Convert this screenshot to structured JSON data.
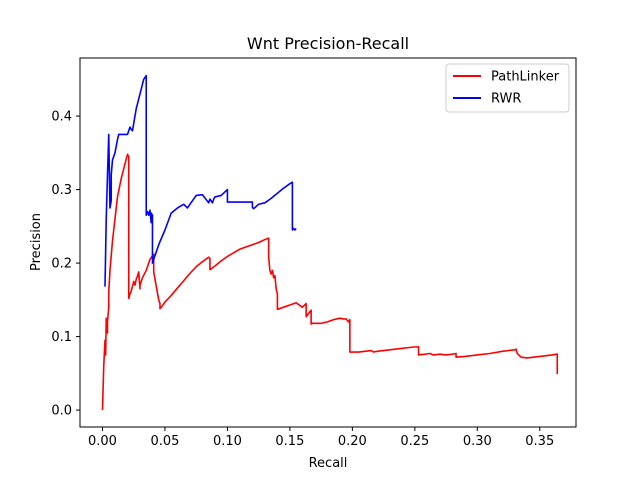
{
  "chart_data": {
    "type": "line",
    "title": "Wnt Precision-Recall",
    "xlabel": "Recall",
    "ylabel": "Precision",
    "xlim": [
      -0.018,
      0.379
    ],
    "ylim": [
      -0.023,
      0.479
    ],
    "xticks": [
      0.0,
      0.05,
      0.1,
      0.15,
      0.2,
      0.25,
      0.3,
      0.35
    ],
    "xtick_labels": [
      "0.00",
      "0.05",
      "0.10",
      "0.15",
      "0.20",
      "0.25",
      "0.30",
      "0.35"
    ],
    "yticks": [
      0.0,
      0.1,
      0.2,
      0.3,
      0.4
    ],
    "ytick_labels": [
      "0.0",
      "0.1",
      "0.2",
      "0.3",
      "0.4"
    ],
    "grid": false,
    "legend_position": "top-right",
    "series": [
      {
        "name": "PathLinker",
        "color": "#ff0000",
        "x": [
          0.0,
          0.001,
          0.002,
          0.0025,
          0.003,
          0.004,
          0.004,
          0.005,
          0.005,
          0.006,
          0.008,
          0.01,
          0.012,
          0.015,
          0.018,
          0.02,
          0.021,
          0.021,
          0.022,
          0.023,
          0.024,
          0.025,
          0.026,
          0.027,
          0.028,
          0.029,
          0.03,
          0.03,
          0.032,
          0.035,
          0.038,
          0.04,
          0.041,
          0.041,
          0.045,
          0.046,
          0.046,
          0.048,
          0.05,
          0.055,
          0.06,
          0.065,
          0.07,
          0.075,
          0.08,
          0.085,
          0.086,
          0.086,
          0.09,
          0.095,
          0.1,
          0.105,
          0.11,
          0.115,
          0.12,
          0.125,
          0.13,
          0.133,
          0.133,
          0.134,
          0.135,
          0.136,
          0.137,
          0.138,
          0.139,
          0.14,
          0.14,
          0.145,
          0.15,
          0.155,
          0.16,
          0.163,
          0.163,
          0.167,
          0.167,
          0.168,
          0.17,
          0.175,
          0.18,
          0.185,
          0.19,
          0.193,
          0.195,
          0.197,
          0.198,
          0.198,
          0.205,
          0.21,
          0.215,
          0.217,
          0.22,
          0.225,
          0.23,
          0.235,
          0.24,
          0.245,
          0.25,
          0.252,
          0.253,
          0.253,
          0.258,
          0.262,
          0.265,
          0.27,
          0.275,
          0.28,
          0.283,
          0.283,
          0.29,
          0.3,
          0.31,
          0.32,
          0.33,
          0.331,
          0.332,
          0.335,
          0.34,
          0.345,
          0.35,
          0.355,
          0.36,
          0.363,
          0.364,
          0.364
        ],
        "y": [
          0.0,
          0.06,
          0.095,
          0.075,
          0.125,
          0.105,
          0.12,
          0.14,
          0.16,
          0.19,
          0.23,
          0.26,
          0.29,
          0.315,
          0.335,
          0.348,
          0.345,
          0.152,
          0.158,
          0.162,
          0.168,
          0.175,
          0.17,
          0.178,
          0.182,
          0.188,
          0.165,
          0.17,
          0.18,
          0.19,
          0.205,
          0.21,
          0.212,
          0.188,
          0.15,
          0.145,
          0.138,
          0.142,
          0.147,
          0.156,
          0.166,
          0.176,
          0.186,
          0.195,
          0.202,
          0.208,
          0.206,
          0.191,
          0.196,
          0.203,
          0.209,
          0.214,
          0.219,
          0.222,
          0.225,
          0.228,
          0.232,
          0.234,
          0.208,
          0.19,
          0.185,
          0.19,
          0.18,
          0.183,
          0.165,
          0.158,
          0.137,
          0.14,
          0.143,
          0.146,
          0.14,
          0.145,
          0.127,
          0.136,
          0.117,
          0.118,
          0.118,
          0.118,
          0.12,
          0.123,
          0.125,
          0.124,
          0.124,
          0.12,
          0.123,
          0.079,
          0.079,
          0.08,
          0.081,
          0.079,
          0.08,
          0.081,
          0.082,
          0.083,
          0.084,
          0.085,
          0.086,
          0.086,
          0.086,
          0.075,
          0.076,
          0.077,
          0.075,
          0.076,
          0.075,
          0.076,
          0.077,
          0.072,
          0.073,
          0.075,
          0.077,
          0.08,
          0.082,
          0.083,
          0.077,
          0.072,
          0.071,
          0.072,
          0.073,
          0.074,
          0.075,
          0.076,
          0.076,
          0.049
        ]
      },
      {
        "name": "RWR",
        "color": "#0000ff",
        "x": [
          0.002,
          0.003,
          0.004,
          0.005,
          0.006,
          0.007,
          0.007,
          0.008,
          0.01,
          0.012,
          0.013,
          0.014,
          0.016,
          0.018,
          0.02,
          0.022,
          0.023,
          0.024,
          0.025,
          0.027,
          0.03,
          0.033,
          0.035,
          0.035,
          0.036,
          0.037,
          0.038,
          0.039,
          0.039,
          0.04,
          0.04,
          0.043,
          0.045,
          0.05,
          0.055,
          0.06,
          0.065,
          0.068,
          0.07,
          0.075,
          0.08,
          0.085,
          0.086,
          0.088,
          0.089,
          0.09,
          0.095,
          0.1,
          0.1,
          0.105,
          0.11,
          0.115,
          0.12,
          0.12,
          0.121,
          0.125,
          0.13,
          0.135,
          0.14,
          0.145,
          0.15,
          0.152,
          0.152,
          0.153,
          0.154,
          0.155
        ],
        "y": [
          0.168,
          0.26,
          0.32,
          0.375,
          0.275,
          0.285,
          0.32,
          0.34,
          0.35,
          0.368,
          0.375,
          0.375,
          0.375,
          0.375,
          0.375,
          0.385,
          0.382,
          0.38,
          0.39,
          0.41,
          0.43,
          0.45,
          0.455,
          0.265,
          0.27,
          0.265,
          0.272,
          0.255,
          0.268,
          0.265,
          0.2,
          0.215,
          0.225,
          0.245,
          0.268,
          0.275,
          0.28,
          0.275,
          0.28,
          0.292,
          0.293,
          0.282,
          0.287,
          0.282,
          0.287,
          0.29,
          0.292,
          0.3,
          0.283,
          0.283,
          0.283,
          0.283,
          0.283,
          0.276,
          0.274,
          0.28,
          0.282,
          0.288,
          0.295,
          0.302,
          0.308,
          0.31,
          0.245,
          0.247,
          0.245,
          0.247
        ]
      }
    ]
  }
}
